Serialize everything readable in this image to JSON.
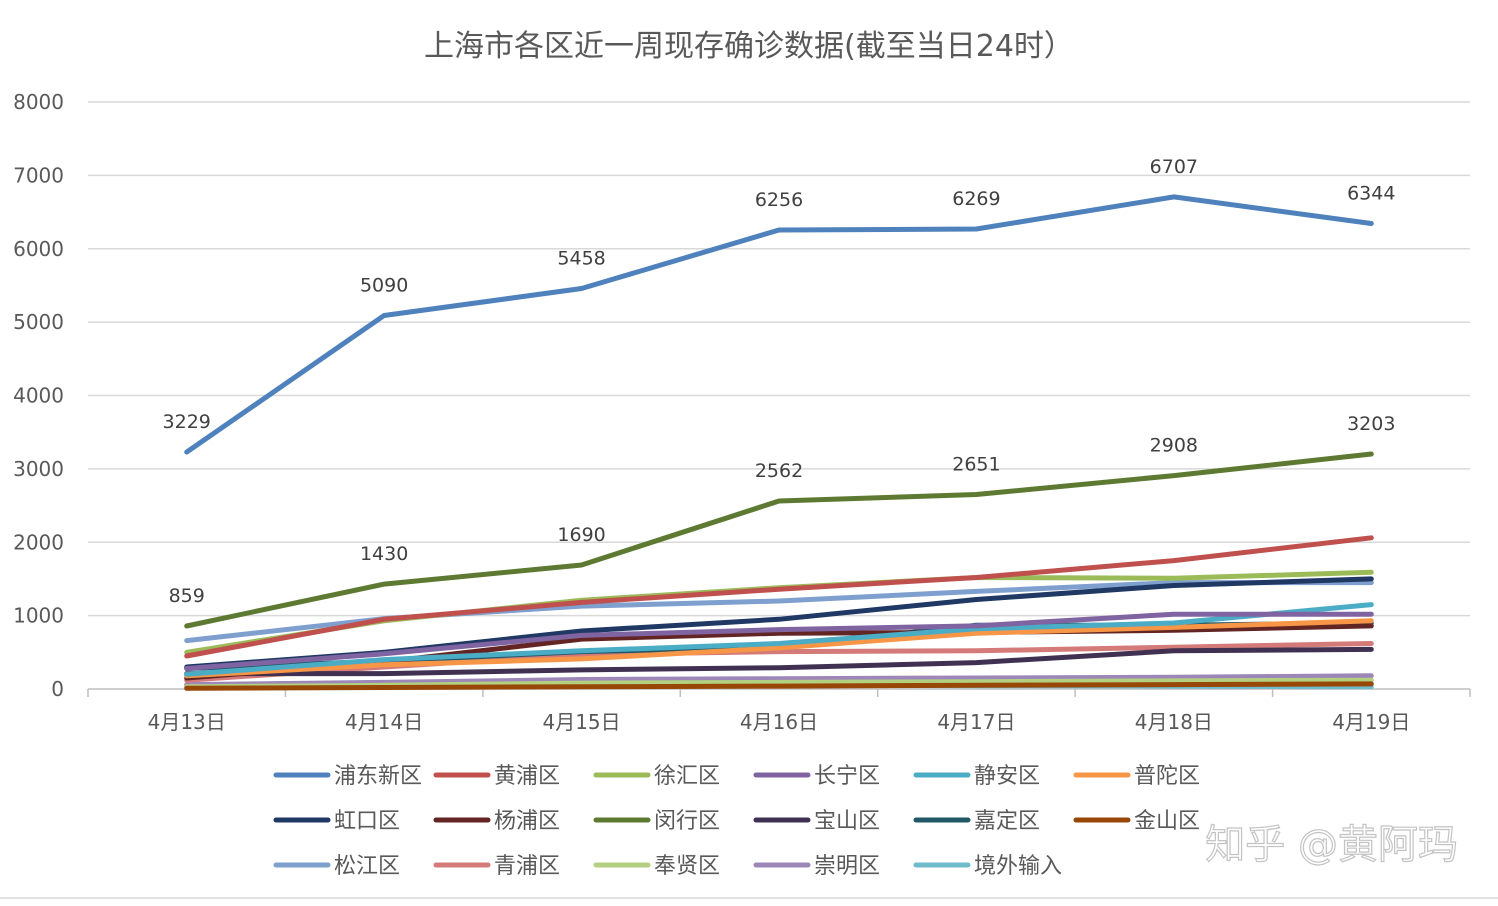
{
  "chart_data": {
    "type": "line",
    "title": "上海市各区近一周现存确诊数据(截至当日24时）",
    "categories": [
      "4月13日",
      "4月14日",
      "4月15日",
      "4月16日",
      "4月17日",
      "4月18日",
      "4月19日"
    ],
    "ylim": [
      0,
      8000
    ],
    "yticks": [
      "0",
      "1000",
      "2000",
      "3000",
      "4000",
      "5000",
      "6000",
      "7000",
      "8000"
    ],
    "grid": true,
    "legend_position": "bottom",
    "series": [
      {
        "name": "浦东新区",
        "color": "#4F81BD",
        "values": [
          3229,
          5090,
          5458,
          6256,
          6269,
          6707,
          6344
        ],
        "labels": [
          "3229",
          "5090",
          "5458",
          "6256",
          "6269",
          "6707",
          "6344"
        ]
      },
      {
        "name": "黄浦区",
        "color": "#C0504D",
        "values": [
          450,
          950,
          1180,
          1360,
          1520,
          1750,
          2060
        ]
      },
      {
        "name": "徐汇区",
        "color": "#9BBB59",
        "values": [
          500,
          930,
          1210,
          1380,
          1520,
          1510,
          1590
        ]
      },
      {
        "name": "长宁区",
        "color": "#8064A2",
        "values": [
          280,
          480,
          730,
          810,
          860,
          1020,
          1020
        ]
      },
      {
        "name": "静安区",
        "color": "#4BACC6",
        "values": [
          200,
          400,
          520,
          620,
          820,
          900,
          1150
        ]
      },
      {
        "name": "普陀区",
        "color": "#F79646",
        "values": [
          180,
          330,
          410,
          560,
          760,
          840,
          930
        ]
      },
      {
        "name": "虹口区",
        "color": "#1F3864",
        "values": [
          300,
          500,
          790,
          950,
          1220,
          1410,
          1500
        ]
      },
      {
        "name": "杨浦区",
        "color": "#632523",
        "values": [
          150,
          370,
          680,
          760,
          770,
          800,
          860
        ]
      },
      {
        "name": "闵行区",
        "color": "#5E7A32",
        "values": [
          859,
          1430,
          1690,
          2562,
          2651,
          2908,
          3203
        ],
        "labels": [
          "859",
          "1430",
          "1690",
          "2562",
          "2651",
          "2908",
          "3203"
        ]
      },
      {
        "name": "宝山区",
        "color": "#403152",
        "values": [
          210,
          210,
          260,
          290,
          360,
          520,
          540
        ]
      },
      {
        "name": "嘉定区",
        "color": "#215967",
        "values": [
          280,
          380,
          510,
          570,
          870,
          870,
          900
        ]
      },
      {
        "name": "金山区",
        "color": "#974706",
        "values": [
          10,
          20,
          30,
          40,
          50,
          60,
          70
        ]
      },
      {
        "name": "松江区",
        "color": "#7F9FCF",
        "values": [
          660,
          960,
          1130,
          1200,
          1330,
          1450,
          1450
        ]
      },
      {
        "name": "青浦区",
        "color": "#D47A78",
        "values": [
          120,
          300,
          470,
          510,
          520,
          570,
          620
        ]
      },
      {
        "name": "奉贤区",
        "color": "#B3CF80",
        "values": [
          30,
          50,
          80,
          90,
          100,
          110,
          120
        ]
      },
      {
        "name": "崇明区",
        "color": "#9D87B8",
        "values": [
          60,
          90,
          130,
          140,
          150,
          160,
          180
        ]
      },
      {
        "name": "境外输入",
        "color": "#6FBACB",
        "values": [
          40,
          45,
          50,
          50,
          45,
          40,
          30
        ]
      }
    ]
  },
  "watermark": "知乎 @黄阿玛"
}
